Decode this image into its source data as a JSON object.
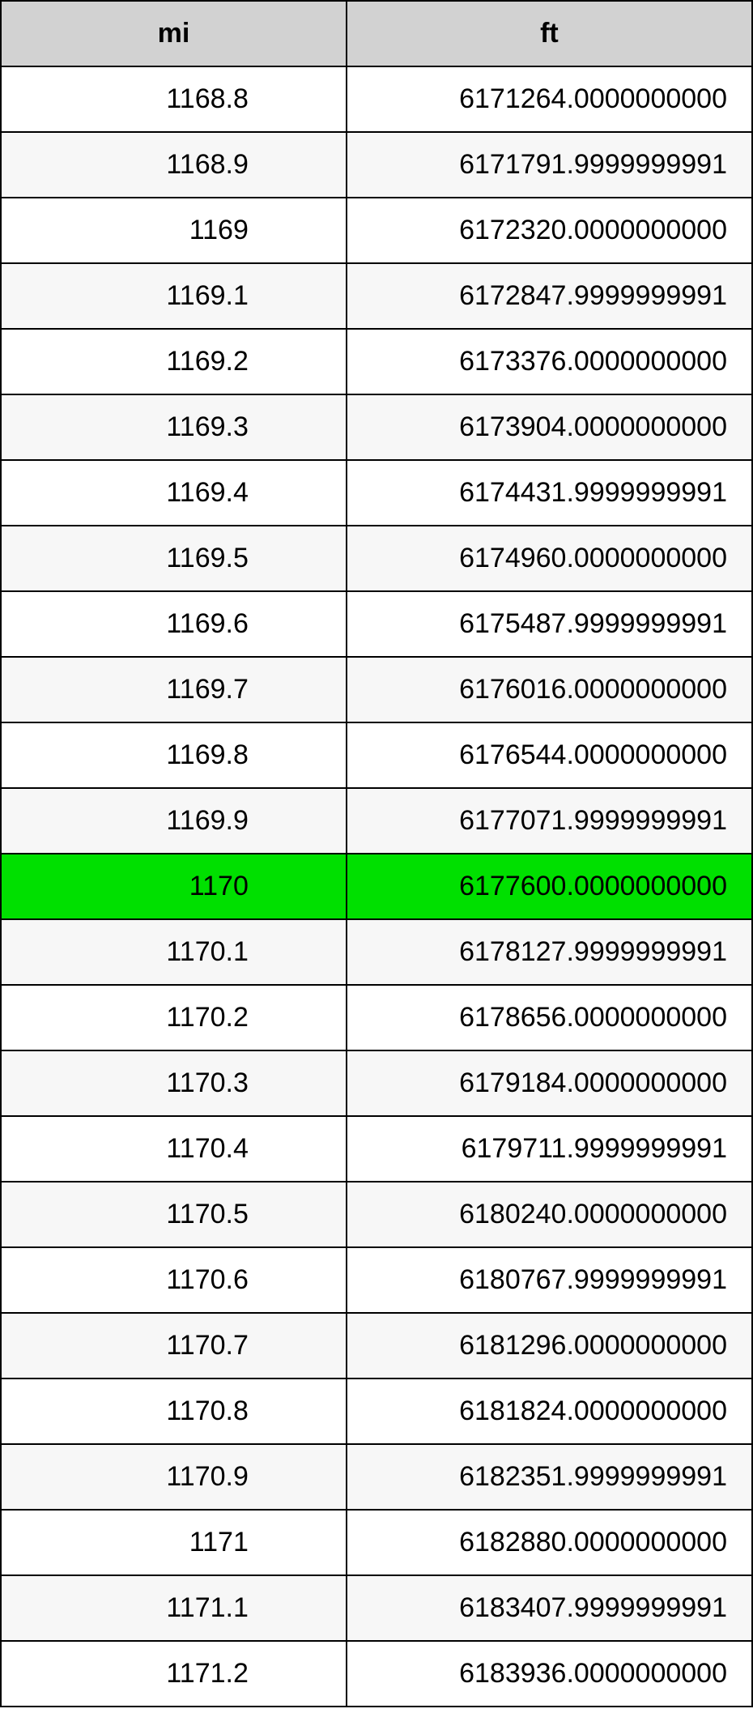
{
  "table": {
    "type": "table",
    "columns": [
      {
        "key": "mi",
        "label": "mi",
        "width_pct": 46,
        "align": "right",
        "cell_class": "mi-cell"
      },
      {
        "key": "ft",
        "label": "ft",
        "width_pct": 54,
        "align": "right",
        "cell_class": "ft-cell"
      }
    ],
    "header_bg": "#d2d2d2",
    "row_bg_odd": "#ffffff",
    "row_bg_even": "#f7f7f7",
    "highlight_bg": "#00e000",
    "border_color": "#000000",
    "font_size_pt": 26,
    "rows": [
      {
        "mi": "1168.8",
        "ft": "6171264.0000000000",
        "highlight": false
      },
      {
        "mi": "1168.9",
        "ft": "6171791.9999999991",
        "highlight": false
      },
      {
        "mi": "1169",
        "ft": "6172320.0000000000",
        "highlight": false
      },
      {
        "mi": "1169.1",
        "ft": "6172847.9999999991",
        "highlight": false
      },
      {
        "mi": "1169.2",
        "ft": "6173376.0000000000",
        "highlight": false
      },
      {
        "mi": "1169.3",
        "ft": "6173904.0000000000",
        "highlight": false
      },
      {
        "mi": "1169.4",
        "ft": "6174431.9999999991",
        "highlight": false
      },
      {
        "mi": "1169.5",
        "ft": "6174960.0000000000",
        "highlight": false
      },
      {
        "mi": "1169.6",
        "ft": "6175487.9999999991",
        "highlight": false
      },
      {
        "mi": "1169.7",
        "ft": "6176016.0000000000",
        "highlight": false
      },
      {
        "mi": "1169.8",
        "ft": "6176544.0000000000",
        "highlight": false
      },
      {
        "mi": "1169.9",
        "ft": "6177071.9999999991",
        "highlight": false
      },
      {
        "mi": "1170",
        "ft": "6177600.0000000000",
        "highlight": true
      },
      {
        "mi": "1170.1",
        "ft": "6178127.9999999991",
        "highlight": false
      },
      {
        "mi": "1170.2",
        "ft": "6178656.0000000000",
        "highlight": false
      },
      {
        "mi": "1170.3",
        "ft": "6179184.0000000000",
        "highlight": false
      },
      {
        "mi": "1170.4",
        "ft": "6179711.9999999991",
        "highlight": false
      },
      {
        "mi": "1170.5",
        "ft": "6180240.0000000000",
        "highlight": false
      },
      {
        "mi": "1170.6",
        "ft": "6180767.9999999991",
        "highlight": false
      },
      {
        "mi": "1170.7",
        "ft": "6181296.0000000000",
        "highlight": false
      },
      {
        "mi": "1170.8",
        "ft": "6181824.0000000000",
        "highlight": false
      },
      {
        "mi": "1170.9",
        "ft": "6182351.9999999991",
        "highlight": false
      },
      {
        "mi": "1171",
        "ft": "6182880.0000000000",
        "highlight": false
      },
      {
        "mi": "1171.1",
        "ft": "6183407.9999999991",
        "highlight": false
      },
      {
        "mi": "1171.2",
        "ft": "6183936.0000000000",
        "highlight": false
      }
    ]
  }
}
